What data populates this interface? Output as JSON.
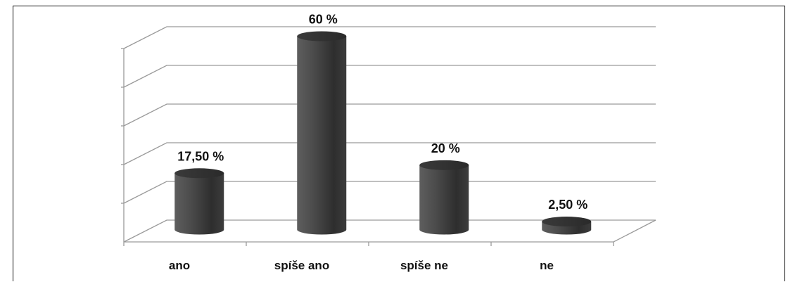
{
  "chart_data": {
    "type": "bar",
    "style": "3d-cylinder",
    "categories": [
      "ano",
      "spíše ano",
      "spíše ne",
      "ne"
    ],
    "values": [
      17.5,
      60,
      20,
      2.5
    ],
    "data_labels": [
      "17,50 %",
      "60 %",
      "20 %",
      "2,50 %"
    ],
    "title": "",
    "xlabel": "",
    "ylabel": "",
    "ylim": [
      0,
      60
    ],
    "y_tick_labels_shown": false,
    "grid": true,
    "legend": "none",
    "bar_color": "#474747"
  }
}
